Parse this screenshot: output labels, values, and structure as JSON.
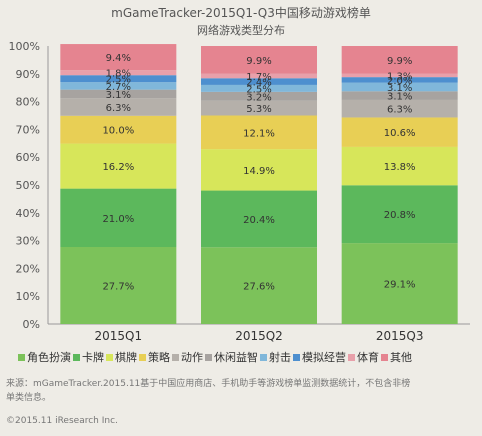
{
  "title": "mGameTracker-2015Q1-Q3中国移动游戏榜单",
  "subtitle": "网络游戏类型分布",
  "chart_data": {
    "type": "bar",
    "stacked": true,
    "categories": [
      "2015Q1",
      "2015Q2",
      "2015Q3"
    ],
    "ylim": [
      0,
      100
    ],
    "yticks": [
      "0%",
      "10%",
      "20%",
      "30%",
      "40%",
      "50%",
      "60%",
      "70%",
      "80%",
      "90%",
      "100%"
    ],
    "legend_position": "bottom",
    "series": [
      {
        "name": "角色扮演",
        "color": "#7cc25a",
        "values": [
          27.7,
          27.6,
          29.1
        ],
        "labels": [
          "27.7%",
          "27.6%",
          "29.1%"
        ]
      },
      {
        "name": "卡牌",
        "color": "#5cb85c",
        "values": [
          21.0,
          20.4,
          20.8
        ],
        "labels": [
          "21.0%",
          "20.4%",
          "20.8%"
        ]
      },
      {
        "name": "棋牌",
        "color": "#d7e65a",
        "values": [
          16.2,
          14.9,
          13.8
        ],
        "labels": [
          "16.2%",
          "14.9%",
          "13.8%"
        ]
      },
      {
        "name": "策略",
        "color": "#e8cf55",
        "values": [
          10.0,
          12.1,
          10.6
        ],
        "labels": [
          "10.0%",
          "12.1%",
          "10.6%"
        ]
      },
      {
        "name": "动作",
        "color": "#b5b0aa",
        "values": [
          6.3,
          5.3,
          6.3
        ],
        "labels": [
          "6.3%",
          "5.3%",
          "6.3%"
        ]
      },
      {
        "name": "休闲益智",
        "color": "#a7a3a0",
        "values": [
          3.1,
          3.2,
          3.1
        ],
        "labels": [
          "3.1%",
          "3.2%",
          "3.1%"
        ]
      },
      {
        "name": "射击",
        "color": "#80b7da",
        "values": [
          2.7,
          2.5,
          3.1
        ],
        "labels": [
          "2.7%",
          "2.5%",
          "3.1%"
        ]
      },
      {
        "name": "模拟经营",
        "color": "#4d8fcf",
        "values": [
          2.5,
          2.4,
          2.0
        ],
        "labels": [
          "2.5%",
          "2.4%",
          "2.0%"
        ]
      },
      {
        "name": "体育",
        "color": "#e8a0aa",
        "values": [
          1.8,
          1.7,
          1.3
        ],
        "labels": [
          "1.8%",
          "1.7%",
          "1.3%"
        ]
      },
      {
        "name": "其他",
        "color": "#e58490",
        "values": [
          9.4,
          9.9,
          9.9
        ],
        "labels": [
          "9.4%",
          "9.9%",
          "9.9%"
        ]
      }
    ]
  },
  "source_note_line1": "来源：mGameTracker.2015.11基于中国应用商店、手机助手等游戏榜单监测数据统计，不包含非榜",
  "source_note_line2": "单类信息。",
  "copyright": "©2015.11 iResearch Inc."
}
